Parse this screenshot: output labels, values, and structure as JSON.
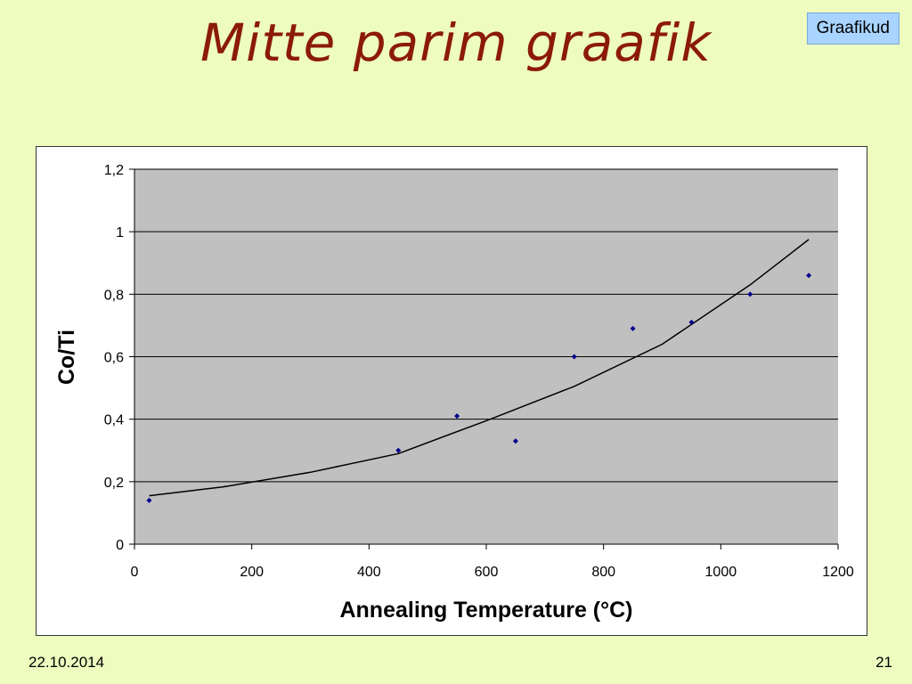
{
  "slide": {
    "title": "Mitte parim graafik",
    "tag": "Graafikud",
    "date": "22.10.2014",
    "page_number": "21"
  },
  "colors": {
    "background": "#eefcc0",
    "title": "#8b1a06",
    "plot_area": "#c0c0c0",
    "marker": "#00008b",
    "trendline": "#000000"
  },
  "chart_data": {
    "type": "scatter",
    "title": "",
    "xlabel": "Annealing Temperature (°C)",
    "ylabel": "Co/Ti",
    "xlim": [
      0,
      1200
    ],
    "ylim": [
      0,
      1.2
    ],
    "x_ticks": [
      0,
      200,
      400,
      600,
      800,
      1000,
      1200
    ],
    "x_tick_labels": [
      "0",
      "200",
      "400",
      "600",
      "800",
      "1000",
      "1200"
    ],
    "y_ticks": [
      0,
      0.2,
      0.4,
      0.6,
      0.8,
      1.0,
      1.2
    ],
    "y_tick_labels": [
      "0",
      "0,2",
      "0,4",
      "0,6",
      "0,8",
      "1",
      "1,2"
    ],
    "grid": "horizontal",
    "legend": "none",
    "series": [
      {
        "x": [
          25,
          450,
          550,
          650,
          750,
          850,
          950,
          1050,
          1150
        ],
        "y": [
          0.14,
          0.3,
          0.41,
          0.33,
          0.6,
          0.69,
          0.71,
          0.8,
          0.86
        ]
      }
    ],
    "trendline": {
      "type": "exponential",
      "x": [
        25,
        150,
        300,
        450,
        600,
        750,
        900,
        1050,
        1150
      ],
      "y": [
        0.155,
        0.183,
        0.23,
        0.29,
        0.395,
        0.505,
        0.64,
        0.83,
        0.975
      ]
    }
  }
}
